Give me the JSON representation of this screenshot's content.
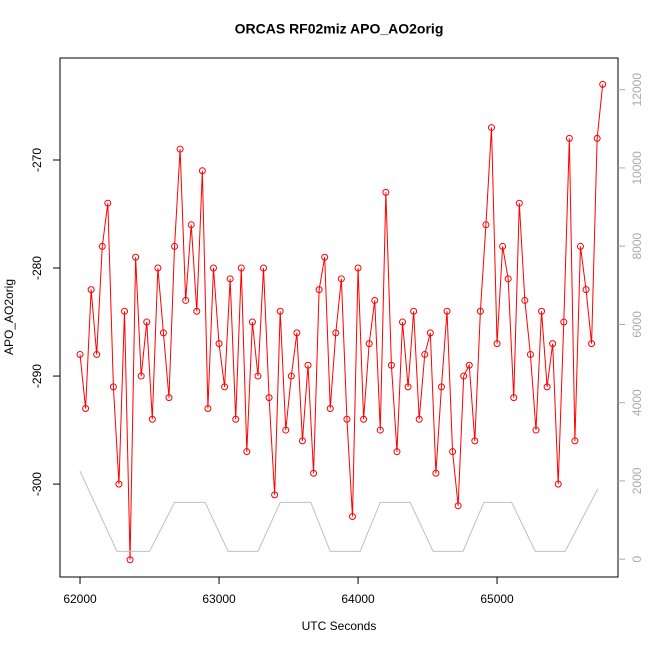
{
  "chart_data": {
    "type": "line",
    "title": "ORCAS RF02miz APO_AO2orig",
    "xlabel": "UTC Seconds",
    "ylabel": "APO_AO2orig",
    "xlim": [
      61856,
      65870
    ],
    "xticks": [
      62000,
      63000,
      64000,
      65000
    ],
    "ylim": [
      -308.6,
      -260.56
    ],
    "yticks": [
      -300,
      -290,
      -280,
      -270
    ],
    "y2lim": [
      -456,
      12810
    ],
    "y2ticks": [
      0,
      2000,
      4000,
      6000,
      8000,
      10000,
      12000
    ],
    "series": [
      {
        "color": "#ff0000",
        "axis": "y",
        "markers": true,
        "x": [
          62000,
          62040,
          62080,
          62120,
          62160,
          62200,
          62240,
          62280,
          62320,
          62360,
          62400,
          62440,
          62480,
          62520,
          62560,
          62600,
          62640,
          62680,
          62720,
          62760,
          62800,
          62840,
          62880,
          62920,
          62960,
          63000,
          63040,
          63080,
          63120,
          63160,
          63200,
          63240,
          63280,
          63320,
          63360,
          63400,
          63440,
          63480,
          63520,
          63560,
          63600,
          63640,
          63680,
          63720,
          63760,
          63800,
          63840,
          63880,
          63920,
          63960,
          64000,
          64040,
          64080,
          64120,
          64160,
          64200,
          64240,
          64280,
          64320,
          64360,
          64400,
          64440,
          64480,
          64520,
          64560,
          64600,
          64640,
          64680,
          64720,
          64760,
          64800,
          64840,
          64880,
          64920,
          64960,
          65000,
          65040,
          65080,
          65120,
          65160,
          65200,
          65240,
          65280,
          65320,
          65360,
          65400,
          65440,
          65480,
          65520,
          65560,
          65600,
          65640,
          65680,
          65720,
          65760
        ],
        "values": [
          -288,
          -293,
          -282,
          -288,
          -278,
          -274,
          -291,
          -300,
          -284,
          -307,
          -279,
          -290,
          -285,
          -294,
          -280,
          -286,
          -292,
          -278,
          -269,
          -283,
          -276,
          -284,
          -271,
          -293,
          -280,
          -287,
          -291,
          -281,
          -294,
          -280,
          -297,
          -285,
          -290,
          -280,
          -292,
          -301,
          -284,
          -295,
          -290,
          -286,
          -296,
          -289,
          -299,
          -282,
          -279,
          -293,
          -286,
          -281,
          -294,
          -303,
          -280,
          -294,
          -287,
          -283,
          -295,
          -273,
          -289,
          -297,
          -285,
          -291,
          -284,
          -294,
          -288,
          -286,
          -299,
          -291,
          -284,
          -297,
          -302,
          -290,
          -289,
          -296,
          -284,
          -276,
          -267,
          -287,
          -278,
          -281,
          -292,
          -274,
          -283,
          -288,
          -295,
          -284,
          -291,
          -287,
          -300,
          -285,
          -268,
          -296,
          -278,
          -282,
          -287,
          -268,
          -263
        ]
      },
      {
        "color": "#c0c0c0",
        "axis": "y2",
        "markers": false,
        "x": [
          62000,
          62266,
          62500,
          62680,
          62900,
          63065,
          63280,
          63440,
          63660,
          63800,
          64015,
          64160,
          64375,
          64540,
          64755,
          64905,
          65105,
          65275,
          65490,
          65725
        ],
        "values": [
          2250,
          200,
          200,
          1450,
          1450,
          200,
          200,
          1450,
          1450,
          200,
          200,
          1450,
          1450,
          200,
          200,
          1450,
          1450,
          200,
          200,
          1800
        ]
      }
    ]
  }
}
